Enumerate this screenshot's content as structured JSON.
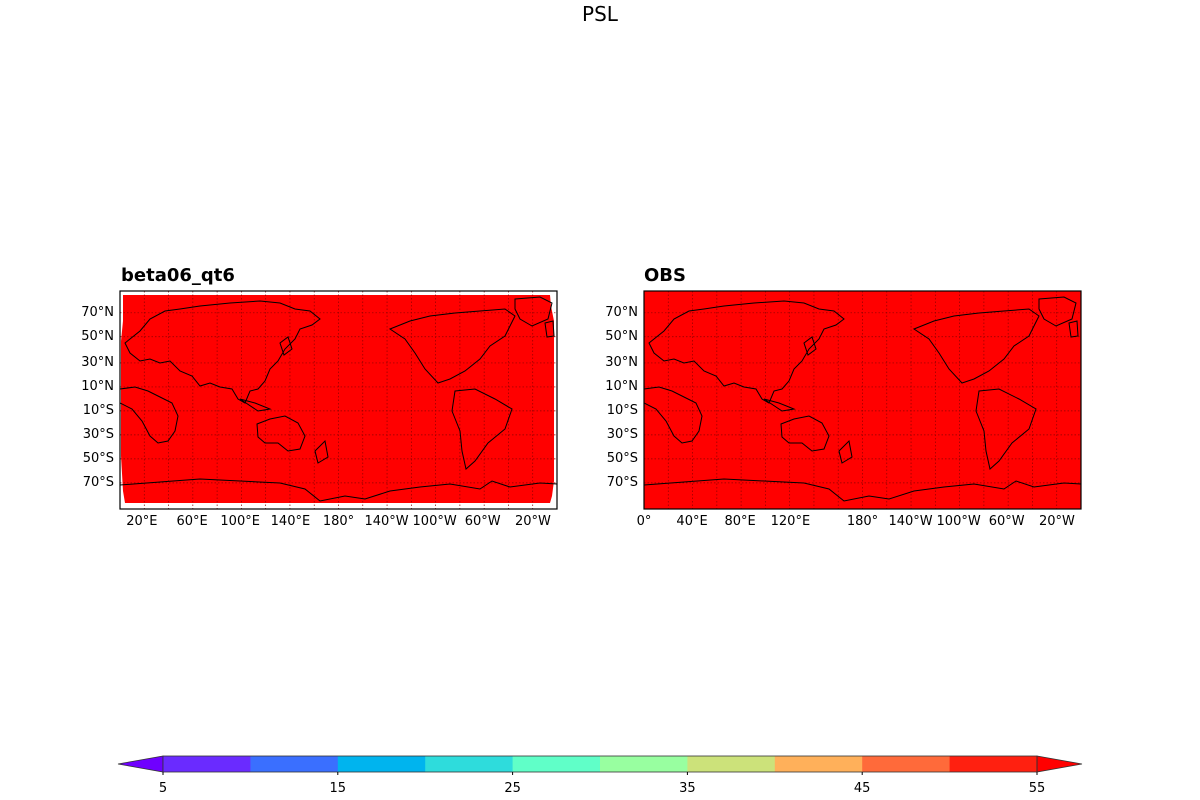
{
  "suptitle": "PSL",
  "panels": [
    {
      "title": "beta06_qt6",
      "lat_labels": [
        "70°N",
        "50°N",
        "30°N",
        "10°N",
        "10°S",
        "30°S",
        "50°S",
        "70°S"
      ],
      "lon_labels": [
        "20°E",
        "60°E",
        "100°E",
        "140°E",
        "180°",
        "140°W",
        "100°W",
        "60°W",
        "20°W"
      ],
      "fill_color": "#ff0000",
      "edge_notches": true
    },
    {
      "title": "OBS",
      "lat_labels": [
        "70°N",
        "50°N",
        "30°N",
        "10°N",
        "10°S",
        "30°S",
        "50°S",
        "70°S"
      ],
      "lon_labels": [
        "0°",
        "40°E",
        "80°E",
        "120°E",
        "180°",
        "140°W",
        "100°W",
        "60°W",
        "20°W"
      ],
      "fill_color": "#ff0000",
      "edge_notches": false
    }
  ],
  "colorbar": {
    "tick_labels": [
      "5",
      "15",
      "25",
      "35",
      "45",
      "55"
    ],
    "colors": [
      "#6f00ff",
      "#6a2bff",
      "#3a6fff",
      "#00b4ee",
      "#2edcdc",
      "#60ffc8",
      "#98ffa0",
      "#cce27a",
      "#ffb05a",
      "#ff6a3a",
      "#ff2010",
      "#ff0000"
    ],
    "extend": "both"
  }
}
